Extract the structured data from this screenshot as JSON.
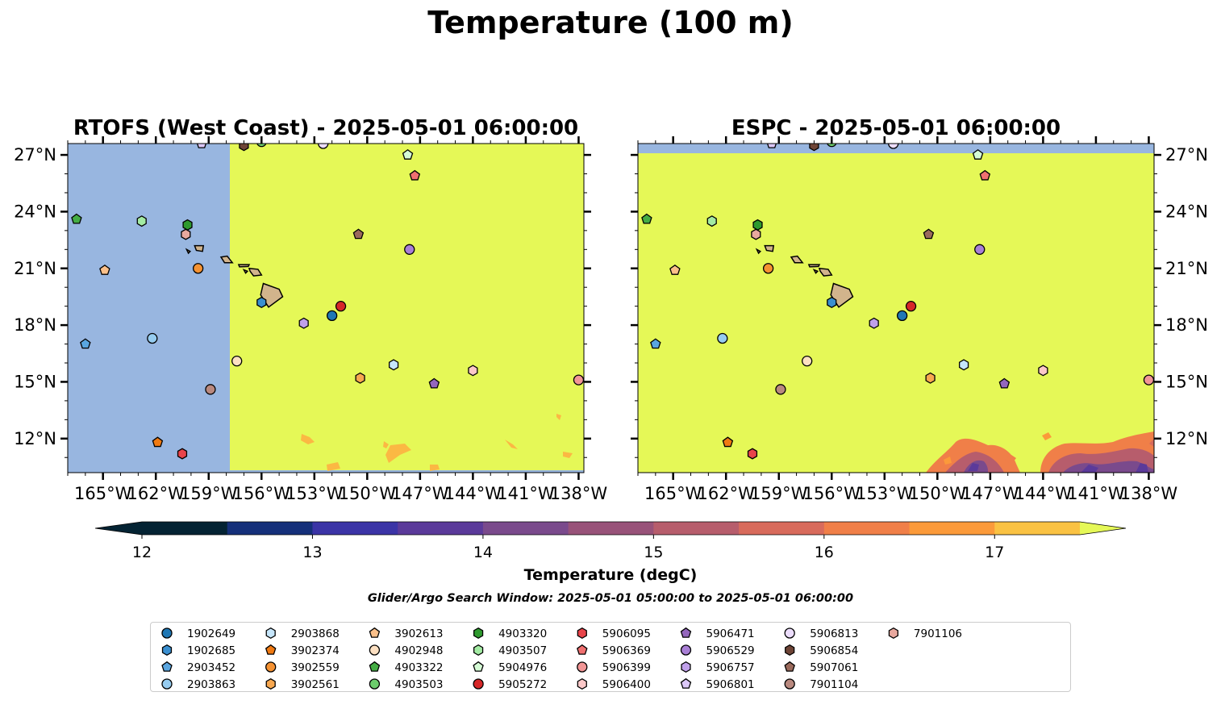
{
  "title": "Temperature (100 m)",
  "panels": [
    {
      "title": "RTOFS (West Coast) - 2025-05-01 06:00:00"
    },
    {
      "title": "ESPC - 2025-05-01 06:00:00"
    }
  ],
  "map": {
    "lon_range": [
      -167,
      -137.7
    ],
    "lat_range": [
      10.2,
      27.6
    ],
    "x_ticks": [
      {
        "value": -165,
        "label": "165°W"
      },
      {
        "value": -162,
        "label": "162°W"
      },
      {
        "value": -159,
        "label": "159°W"
      },
      {
        "value": -156,
        "label": "156°W"
      },
      {
        "value": -153,
        "label": "153°W"
      },
      {
        "value": -150,
        "label": "150°W"
      },
      {
        "value": -147,
        "label": "147°W"
      },
      {
        "value": -144,
        "label": "144°W"
      },
      {
        "value": -141,
        "label": "141°W"
      },
      {
        "value": -138,
        "label": "138°W"
      }
    ],
    "y_ticks": [
      {
        "value": 27,
        "label": "27°N"
      },
      {
        "value": 24,
        "label": "24°N"
      },
      {
        "value": 21,
        "label": "21°N"
      },
      {
        "value": 18,
        "label": "18°N"
      },
      {
        "value": 15,
        "label": "15°N"
      },
      {
        "value": 12,
        "label": "12°N"
      }
    ],
    "colors": {
      "warm_field": "#e5f857",
      "masked": "#98b6e0",
      "land": "#d2b48c",
      "gridline": "#000000"
    }
  },
  "colorbar": {
    "label": "Temperature (degC)",
    "min": 11.75,
    "max": 17.5,
    "ticks": [
      {
        "value": 12,
        "label": "12"
      },
      {
        "value": 13,
        "label": "13"
      },
      {
        "value": 14,
        "label": "14"
      },
      {
        "value": 15,
        "label": "15"
      },
      {
        "value": 16,
        "label": "16"
      },
      {
        "value": 17,
        "label": "17"
      }
    ],
    "bins": [
      {
        "from": 12.0,
        "to": 12.5,
        "color": "#042333"
      },
      {
        "from": 12.5,
        "to": 13.0,
        "color": "#15307a"
      },
      {
        "from": 13.0,
        "to": 13.5,
        "color": "#3b34a6"
      },
      {
        "from": 13.5,
        "to": 14.0,
        "color": "#5b3a9a"
      },
      {
        "from": 14.0,
        "to": 14.5,
        "color": "#7a4a8c"
      },
      {
        "from": 14.5,
        "to": 15.0,
        "color": "#985279"
      },
      {
        "from": 15.0,
        "to": 15.5,
        "color": "#b75d6c"
      },
      {
        "from": 15.5,
        "to": 16.0,
        "color": "#d86b5c"
      },
      {
        "from": 16.0,
        "to": 16.5,
        "color": "#f07f48"
      },
      {
        "from": 16.5,
        "to": 17.0,
        "color": "#fb9a3a"
      },
      {
        "from": 17.0,
        "to": 17.5,
        "color": "#fac243"
      }
    ],
    "under_color": "#042333",
    "over_color": "#e5f857"
  },
  "search_window": "Glider/Argo Search Window: 2025-05-01 05:00:00 to 2025-05-01 06:00:00",
  "floats": [
    {
      "id": "1902649",
      "marker": "circle",
      "color": "#1f77b4",
      "lon": -152.0,
      "lat": 18.5
    },
    {
      "id": "1902685",
      "marker": "hexagon",
      "color": "#3a8fd0",
      "lon": -156.0,
      "lat": 19.2
    },
    {
      "id": "2903452",
      "marker": "pentagon",
      "color": "#5aa6e0",
      "lon": -166.0,
      "lat": 17.0
    },
    {
      "id": "2903863",
      "marker": "circle",
      "color": "#96ccf0",
      "lon": -162.2,
      "lat": 17.3
    },
    {
      "id": "2903868",
      "marker": "hexagon",
      "color": "#c6e6fb",
      "lon": -148.5,
      "lat": 15.9
    },
    {
      "id": "3902374",
      "marker": "pentagon",
      "color": "#f07a12",
      "lon": -161.9,
      "lat": 11.8
    },
    {
      "id": "3902559",
      "marker": "circle",
      "color": "#f59232",
      "lon": -159.6,
      "lat": 21.0
    },
    {
      "id": "3902561",
      "marker": "hexagon",
      "color": "#f8a850",
      "lon": -150.4,
      "lat": 15.2
    },
    {
      "id": "3902613",
      "marker": "pentagon",
      "color": "#fbc08a",
      "lon": -164.9,
      "lat": 20.9
    },
    {
      "id": "4902948",
      "marker": "circle",
      "color": "#fde0c2",
      "lon": -157.4,
      "lat": 16.1
    },
    {
      "id": "4903322",
      "marker": "pentagon",
      "color": "#44ad44",
      "lon": -166.5,
      "lat": 23.6
    },
    {
      "id": "4903503",
      "marker": "circle",
      "color": "#6ccc6c",
      "lon": -156.0,
      "lat": 27.7
    },
    {
      "id": "4903320",
      "marker": "hexagon",
      "color": "#2e9a2e",
      "lon": -160.2,
      "lat": 23.3
    },
    {
      "id": "4903507",
      "marker": "hexagon",
      "color": "#a3eba3",
      "lon": -162.8,
      "lat": 23.5
    },
    {
      "id": "5904976",
      "marker": "pentagon",
      "color": "#d5fbd5",
      "lon": -147.7,
      "lat": 27.0
    },
    {
      "id": "5905272",
      "marker": "circle",
      "color": "#d62728",
      "lon": -151.5,
      "lat": 19.0
    },
    {
      "id": "5906095",
      "marker": "hexagon",
      "color": "#e8444a",
      "lon": -160.5,
      "lat": 11.2
    },
    {
      "id": "5906369",
      "marker": "pentagon",
      "color": "#f07070",
      "lon": -147.3,
      "lat": 25.9
    },
    {
      "id": "5906399",
      "marker": "circle",
      "color": "#f29696",
      "lon": -138.0,
      "lat": 15.1
    },
    {
      "id": "5906400",
      "marker": "hexagon",
      "color": "#fcc8c8",
      "lon": -144.0,
      "lat": 15.6
    },
    {
      "id": "5906471",
      "marker": "pentagon",
      "color": "#9467bd",
      "lon": -146.2,
      "lat": 14.9
    },
    {
      "id": "5906529",
      "marker": "circle",
      "color": "#a97fd6",
      "lon": -147.6,
      "lat": 22.0
    },
    {
      "id": "5906757",
      "marker": "hexagon",
      "color": "#c0a0ea",
      "lon": -153.6,
      "lat": 18.1
    },
    {
      "id": "5906801",
      "marker": "pentagon",
      "color": "#dcc8f8",
      "lon": -159.4,
      "lat": 27.6
    },
    {
      "id": "5906813",
      "marker": "circle",
      "color": "#ecddfc",
      "lon": -152.5,
      "lat": 27.6
    },
    {
      "id": "5906854",
      "marker": "hexagon",
      "color": "#6e4436",
      "lon": -157.0,
      "lat": 27.5
    },
    {
      "id": "5907061",
      "marker": "pentagon",
      "color": "#9a6a5c",
      "lon": -150.5,
      "lat": 22.8
    },
    {
      "id": "7901104",
      "marker": "circle",
      "color": "#b9897f",
      "lon": -158.9,
      "lat": 14.6
    },
    {
      "id": "7901106",
      "marker": "hexagon",
      "color": "#e8a89e",
      "lon": -160.3,
      "lat": 22.8
    }
  ]
}
